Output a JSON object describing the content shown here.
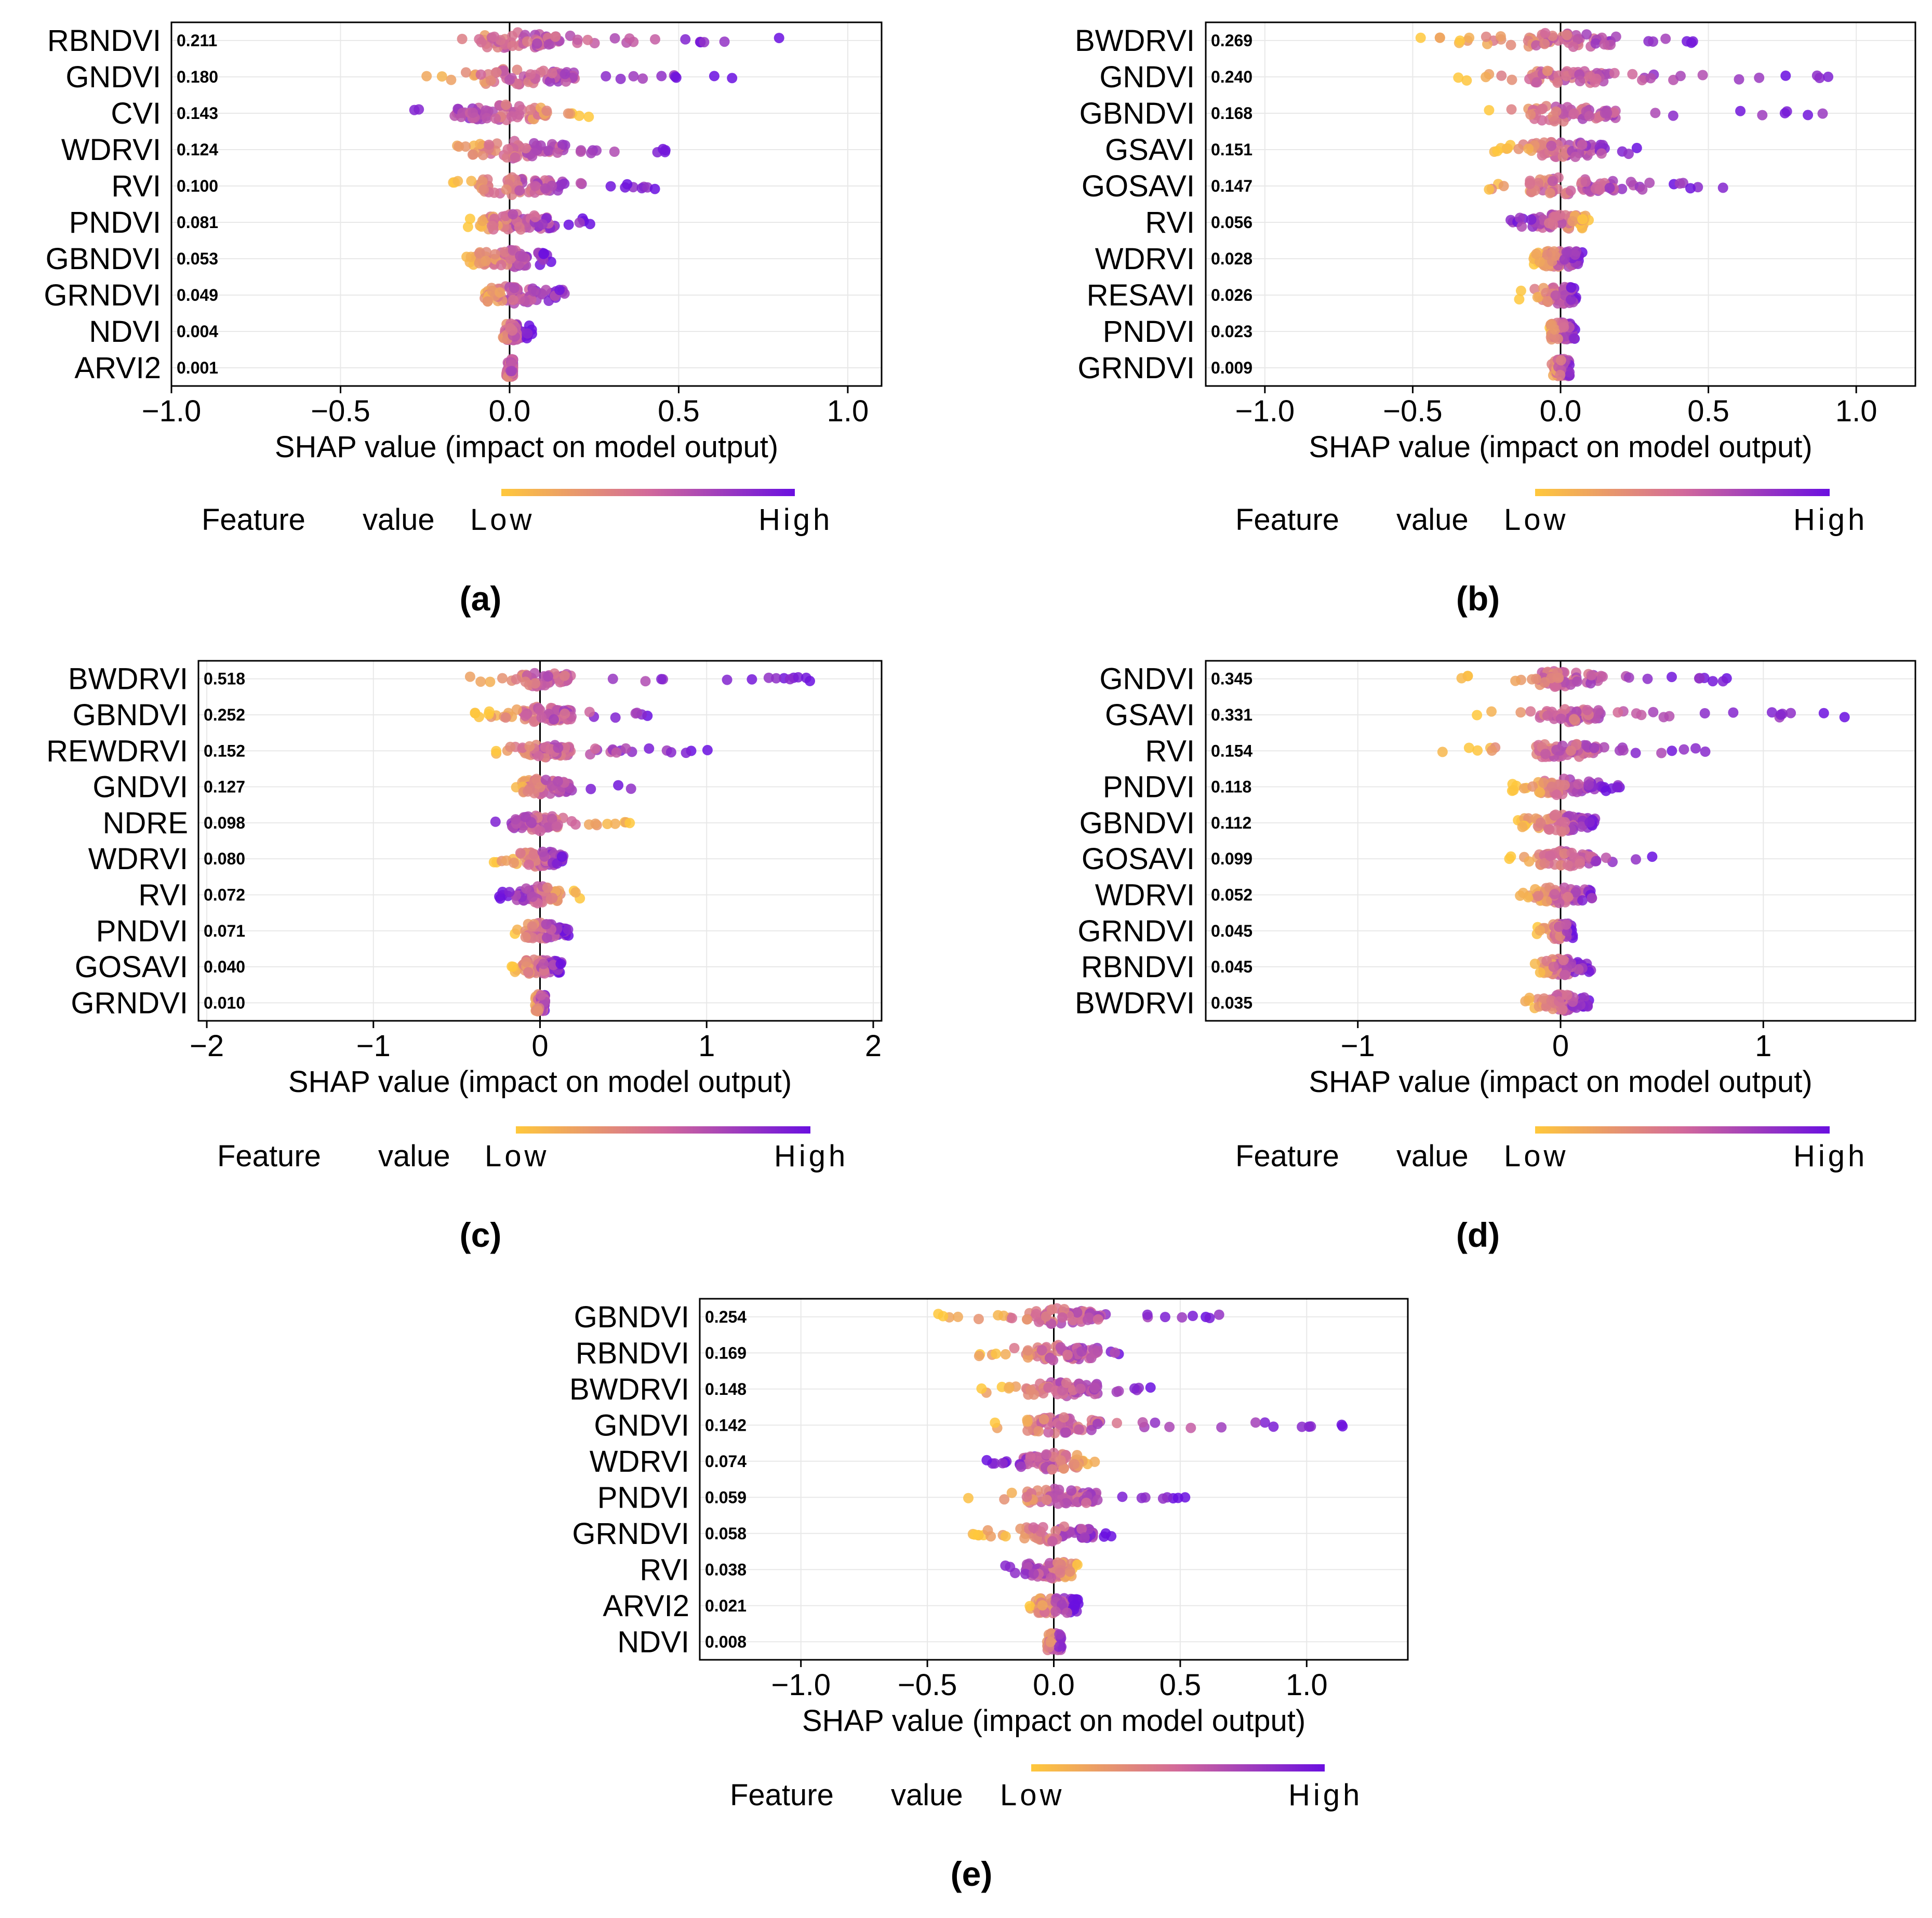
{
  "figure": {
    "colors": {
      "low": "#ffc83c",
      "mid": "#d2699a",
      "high": "#6a0fe0",
      "axis": "#000000",
      "grid": "#e8e8e8"
    },
    "colorbar": {
      "title_a": "Feature",
      "title_b": "value",
      "low": "Low",
      "high": "High"
    },
    "xlabel": "SHAP value (impact on model output)"
  },
  "chart_data": [
    {
      "type": "scatter",
      "panel_label": "(a)",
      "xlim": [
        -1.0,
        1.1
      ],
      "xticks": [
        "−1.0",
        "−0.5",
        "0.0",
        "0.5",
        "1.0"
      ],
      "xtick_values": [
        -1.0,
        -0.5,
        0.0,
        0.5,
        1.0
      ],
      "features": [
        {
          "name": "RBNDVI",
          "importance": "0.211",
          "spread": [
            -0.25,
            0.9
          ],
          "skew": 0.45
        },
        {
          "name": "GNDVI",
          "importance": "0.180",
          "spread": [
            -0.27,
            0.68
          ],
          "skew": 0.4
        },
        {
          "name": "CVI",
          "importance": "0.143",
          "spread": [
            -0.3,
            0.24
          ],
          "skew": -0.2
        },
        {
          "name": "WDRVI",
          "importance": "0.124",
          "spread": [
            -0.18,
            0.48
          ],
          "skew": 0.3
        },
        {
          "name": "RVI",
          "importance": "0.100",
          "spread": [
            -0.19,
            0.45
          ],
          "skew": 0.25
        },
        {
          "name": "PNDVI",
          "importance": "0.081",
          "spread": [
            -0.14,
            0.24
          ],
          "skew": 0.3
        },
        {
          "name": "GBNDVI",
          "importance": "0.053",
          "spread": [
            -0.15,
            0.13
          ],
          "skew": 0.0
        },
        {
          "name": "GRNDVI",
          "importance": "0.049",
          "spread": [
            -0.1,
            0.21
          ],
          "skew": 0.1
        },
        {
          "name": "NDVI",
          "importance": "0.004",
          "spread": [
            -0.02,
            0.07
          ],
          "skew": 0.5
        },
        {
          "name": "ARVI2",
          "importance": "0.001",
          "spread": [
            -0.01,
            0.01
          ],
          "skew": 0.7
        }
      ]
    },
    {
      "type": "scatter",
      "panel_label": "(b)",
      "xlim": [
        -1.2,
        1.2
      ],
      "xticks": [
        "−1.0",
        "−0.5",
        "0.0",
        "0.5",
        "1.0"
      ],
      "xtick_values": [
        -1.0,
        -0.5,
        0.0,
        0.5,
        1.0
      ],
      "features": [
        {
          "name": "BWDRVI",
          "importance": "0.269",
          "spread": [
            -0.5,
            0.5
          ],
          "skew": 0.3
        },
        {
          "name": "GNDVI",
          "importance": "0.240",
          "spread": [
            -0.42,
            0.96
          ],
          "skew": 0.4
        },
        {
          "name": "GBNDVI",
          "importance": "0.168",
          "spread": [
            -0.32,
            1.01
          ],
          "skew": 0.35
        },
        {
          "name": "GSAVI",
          "importance": "0.151",
          "spread": [
            -0.25,
            0.27
          ],
          "skew": 0.2
        },
        {
          "name": "GOSAVI",
          "importance": "0.147",
          "spread": [
            -0.38,
            0.55
          ],
          "skew": 0.4
        },
        {
          "name": "RVI",
          "importance": "0.056",
          "spread": [
            -0.21,
            0.11
          ],
          "skew": -0.1
        },
        {
          "name": "WDRVI",
          "importance": "0.028",
          "spread": [
            -0.1,
            0.08
          ],
          "skew": 0.1
        },
        {
          "name": "RESAVI",
          "importance": "0.026",
          "spread": [
            -0.16,
            0.06
          ],
          "skew": 0.0
        },
        {
          "name": "PNDVI",
          "importance": "0.023",
          "spread": [
            -0.05,
            0.06
          ],
          "skew": 0.2
        },
        {
          "name": "GRNDVI",
          "importance": "0.009",
          "spread": [
            -0.03,
            0.03
          ],
          "skew": 0.5
        }
      ]
    },
    {
      "type": "scatter",
      "panel_label": "(c)",
      "xlim": [
        -2.05,
        2.05
      ],
      "xticks": [
        "−2",
        "−1",
        "0",
        "1",
        "2"
      ],
      "xtick_values": [
        -2,
        -1,
        0,
        1,
        2
      ],
      "features": [
        {
          "name": "BWDRVI",
          "importance": "0.518",
          "spread": [
            -0.68,
            1.68
          ],
          "skew": 0.35
        },
        {
          "name": "GBNDVI",
          "importance": "0.252",
          "spread": [
            -0.4,
            0.77
          ],
          "skew": 0.35
        },
        {
          "name": "REWDRVI",
          "importance": "0.152",
          "spread": [
            -0.3,
            1.02
          ],
          "skew": 0.35
        },
        {
          "name": "GNDVI",
          "importance": "0.127",
          "spread": [
            -0.2,
            0.58
          ],
          "skew": 0.4
        },
        {
          "name": "NDRE",
          "importance": "0.098",
          "spread": [
            -0.27,
            0.68
          ],
          "skew": -0.3
        },
        {
          "name": "WDRVI",
          "importance": "0.080",
          "spread": [
            -0.3,
            0.18
          ],
          "skew": 0.1
        },
        {
          "name": "RVI",
          "importance": "0.072",
          "spread": [
            -0.25,
            0.24
          ],
          "skew": -0.2
        },
        {
          "name": "PNDVI",
          "importance": "0.071",
          "spread": [
            -0.17,
            0.2
          ],
          "skew": 0.4
        },
        {
          "name": "GOSAVI",
          "importance": "0.040",
          "spread": [
            -0.17,
            0.15
          ],
          "skew": 0.1
        },
        {
          "name": "GRNDVI",
          "importance": "0.010",
          "spread": [
            -0.03,
            0.03
          ],
          "skew": 0.4
        }
      ]
    },
    {
      "type": "scatter",
      "panel_label": "(d)",
      "xlim": [
        -1.75,
        1.75
      ],
      "xticks": [
        "−1",
        "0",
        "1"
      ],
      "xtick_values": [
        -1,
        0,
        1
      ],
      "features": [
        {
          "name": "GNDVI",
          "importance": "0.345",
          "spread": [
            -0.52,
            0.83
          ],
          "skew": 0.35
        },
        {
          "name": "GSAVI",
          "importance": "0.331",
          "spread": [
            -0.42,
            1.46
          ],
          "skew": 0.4
        },
        {
          "name": "RVI",
          "importance": "0.154",
          "spread": [
            -0.59,
            0.72
          ],
          "skew": 0.3
        },
        {
          "name": "PNDVI",
          "importance": "0.118",
          "spread": [
            -0.25,
            0.3
          ],
          "skew": 0.3
        },
        {
          "name": "GBNDVI",
          "importance": "0.112",
          "spread": [
            -0.22,
            0.2
          ],
          "skew": 0.3
        },
        {
          "name": "GOSAVI",
          "importance": "0.099",
          "spread": [
            -0.26,
            0.52
          ],
          "skew": 0.3
        },
        {
          "name": "WDRVI",
          "importance": "0.052",
          "spread": [
            -0.2,
            0.22
          ],
          "skew": 0.2
        },
        {
          "name": "GRNDVI",
          "importance": "0.045",
          "spread": [
            -0.12,
            0.06
          ],
          "skew": 0.4
        },
        {
          "name": "RBNDVI",
          "importance": "0.045",
          "spread": [
            -0.14,
            0.15
          ],
          "skew": 0.3
        },
        {
          "name": "BWDRVI",
          "importance": "0.035",
          "spread": [
            -0.2,
            0.15
          ],
          "skew": 0.3
        }
      ]
    },
    {
      "type": "scatter",
      "panel_label": "(e)",
      "xlim": [
        -1.4,
        1.4
      ],
      "xticks": [
        "−1.0",
        "−0.5",
        "0.0",
        "0.5",
        "1.0"
      ],
      "xtick_values": [
        -1.0,
        -0.5,
        0.0,
        0.5,
        1.0
      ],
      "features": [
        {
          "name": "GBNDVI",
          "importance": "0.254",
          "spread": [
            -0.47,
            0.7
          ],
          "skew": 0.35
        },
        {
          "name": "RBNDVI",
          "importance": "0.169",
          "spread": [
            -0.33,
            0.39
          ],
          "skew": 0.3
        },
        {
          "name": "BWDRVI",
          "importance": "0.148",
          "spread": [
            -0.3,
            0.41
          ],
          "skew": 0.3
        },
        {
          "name": "GNDVI",
          "importance": "0.142",
          "spread": [
            -0.24,
            1.16
          ],
          "skew": 0.35
        },
        {
          "name": "WDRVI",
          "importance": "0.074",
          "spread": [
            -0.29,
            0.17
          ],
          "skew": -0.1
        },
        {
          "name": "PNDVI",
          "importance": "0.059",
          "spread": [
            -0.34,
            0.53
          ],
          "skew": 0.3
        },
        {
          "name": "GRNDVI",
          "importance": "0.058",
          "spread": [
            -0.32,
            0.25
          ],
          "skew": 0.2
        },
        {
          "name": "RVI",
          "importance": "0.038",
          "spread": [
            -0.22,
            0.12
          ],
          "skew": -0.2
        },
        {
          "name": "ARVI2",
          "importance": "0.021",
          "spread": [
            -0.1,
            0.1
          ],
          "skew": 0.3
        },
        {
          "name": "NDVI",
          "importance": "0.008",
          "spread": [
            -0.03,
            0.03
          ],
          "skew": 0.4
        }
      ]
    }
  ]
}
